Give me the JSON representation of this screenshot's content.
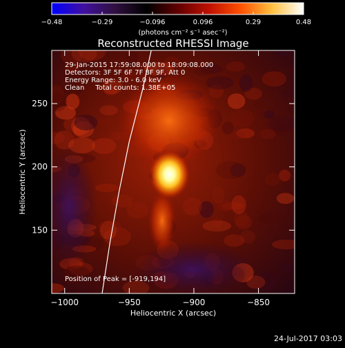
{
  "colorbar": {
    "ticks": [
      "−0.48",
      "−0.29",
      "−0.096",
      "0.096",
      "0.29",
      "0.48"
    ],
    "unit_label": "(photons cm⁻² s⁻¹ asec⁻²)",
    "colormap": [
      "#0000ff",
      "#4010a0",
      "#301040",
      "#000000",
      "#600000",
      "#c01000",
      "#ff5000",
      "#ffc040",
      "#ffffff"
    ]
  },
  "chart_data": {
    "type": "heatmap",
    "title": "Reconstructed RHESSI Image",
    "xlabel": "Heliocentric X (arcsec)",
    "ylabel": "Heliocentric Y (arcsec)",
    "xlim": [
      -1010,
      -822
    ],
    "ylim": [
      100,
      292
    ],
    "xticks": [
      -1000,
      -950,
      -900,
      -850
    ],
    "xtick_labels": [
      "−1000",
      "−950",
      "−900",
      "−850"
    ],
    "yticks": [
      150,
      200,
      250
    ],
    "ytick_labels": [
      "150",
      "200",
      "250"
    ],
    "peak": {
      "x": -919,
      "y": 194
    },
    "limb_curve": [
      [
        -971,
        100
      ],
      [
        -965,
        140
      ],
      [
        -958,
        180
      ],
      [
        -950,
        220
      ],
      [
        -940,
        260
      ],
      [
        -933,
        292
      ]
    ],
    "annotations": [
      "29-Jan-2015 17:59:08.000 to 18:09:08.000",
      "Detectors: 3F 5F 6F 7F 8F 9F, Att 0",
      "Energy Range: 3.0 - 6.0 keV",
      "Clean     Total counts: 1.38E+05"
    ],
    "peak_label": "Position of Peak = [-919,194]"
  },
  "footer": {
    "timestamp": "24-Jul-2017 03:03"
  }
}
